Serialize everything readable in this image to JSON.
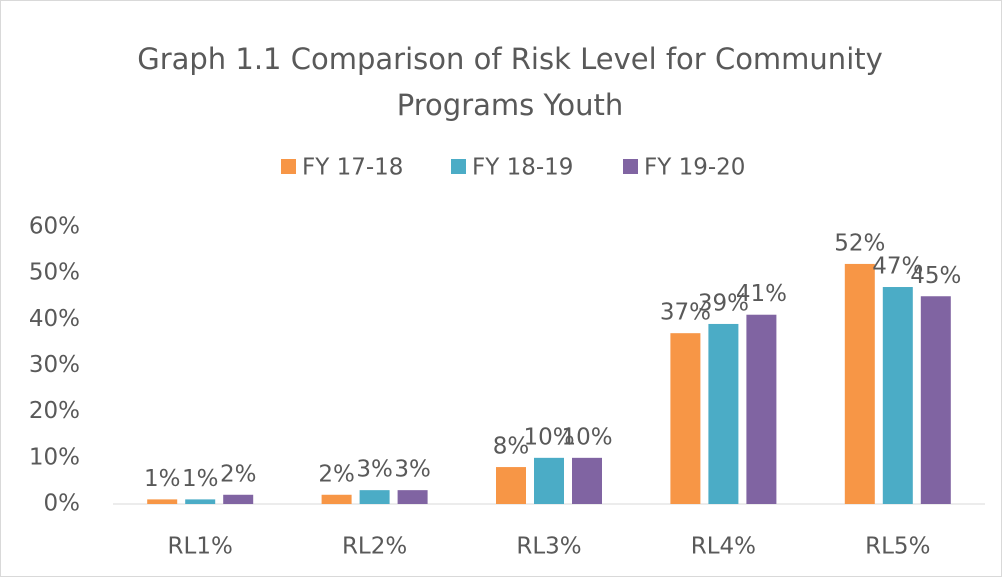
{
  "chart_data": {
    "type": "bar",
    "title": "Graph 1.1 Comparison of Risk Level for Community Programs Youth",
    "categories": [
      "RL1%",
      "RL2%",
      "RL3%",
      "RL4%",
      "RL5%"
    ],
    "series": [
      {
        "name": "FY 17-18",
        "color": "#f79646",
        "values": [
          1,
          2,
          8,
          37,
          52
        ],
        "value_labels": [
          "1%",
          "2%",
          "8%",
          "37%",
          "52%"
        ]
      },
      {
        "name": "FY 18-19",
        "color": "#4bacc6",
        "values": [
          1,
          3,
          10,
          39,
          47
        ],
        "value_labels": [
          "1%",
          "3%",
          "10%",
          "39%",
          "47%"
        ]
      },
      {
        "name": "FY 19-20",
        "color": "#8064a2",
        "values": [
          2,
          3,
          10,
          41,
          45
        ],
        "value_labels": [
          "2%",
          "3%",
          "10%",
          "41%",
          "45%"
        ]
      }
    ],
    "ylim": [
      0,
      60
    ],
    "yticks": [
      {
        "value": 0,
        "label": "0%"
      },
      {
        "value": 10,
        "label": "10%"
      },
      {
        "value": 20,
        "label": "20%"
      },
      {
        "value": 30,
        "label": "30%"
      },
      {
        "value": 40,
        "label": "40%"
      },
      {
        "value": 50,
        "label": "50%"
      },
      {
        "value": 60,
        "label": "60%"
      }
    ],
    "grid": false,
    "legend": "top"
  }
}
